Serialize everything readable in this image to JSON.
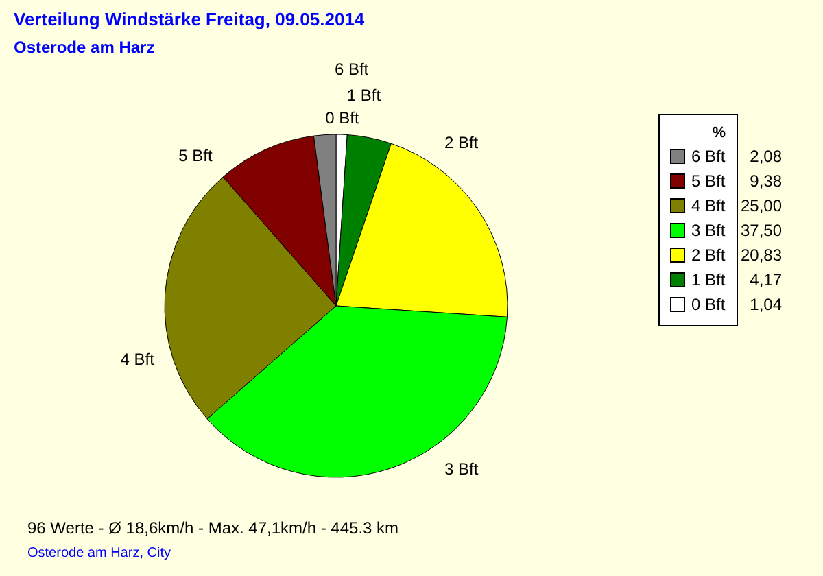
{
  "chart_data": {
    "type": "pie",
    "title": "Verteilung Windstärke  Freitag, 09.05.2014",
    "subtitle": "Osterode am Harz",
    "legend_title": "%",
    "legend": "right",
    "categories": [
      "0 Bft",
      "1 Bft",
      "2 Bft",
      "3 Bft",
      "4 Bft",
      "5 Bft",
      "6 Bft"
    ],
    "values": [
      1.04,
      4.17,
      20.83,
      37.5,
      25.0,
      9.38,
      2.08
    ],
    "value_labels": [
      "1,04",
      "4,17",
      "20,83",
      "37,50",
      "25,00",
      "9,38",
      "2,08"
    ],
    "colors": [
      "#ffffff",
      "#008000",
      "#ffff00",
      "#00ff00",
      "#808000",
      "#800000",
      "#808080"
    ],
    "annotations": [
      "96 Werte   -   Ø 18,6km/h  -  Max. 47,1km/h   -   445.3 km",
      "Osterode am Harz, City"
    ]
  }
}
